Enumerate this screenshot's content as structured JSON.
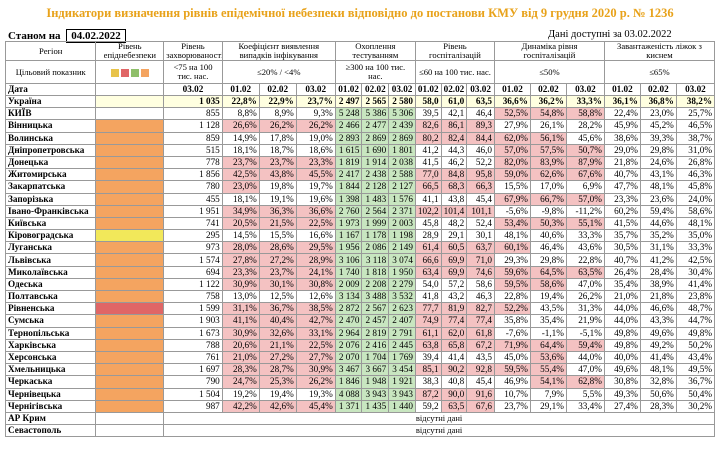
{
  "title": "Індикатори визначення рівнів епідемічної небезпеки відповідно до постанови КМУ від 9 грудня 2020 р. № 1236",
  "as_of_label": "Станом на",
  "as_of_date": "04.02.2022",
  "available_label": "Дані доступні за 03.02.2022",
  "colors": {
    "title": "#e8a21a",
    "orange": "#f4a460",
    "yellow": "#f2e85a",
    "red": "#e06666",
    "pink": "#f4c2c2",
    "green": "#c8e6c0"
  },
  "headers": {
    "region": "Регіон",
    "level": "Рівень епіднебезпеки",
    "incidence": "Рівень захворюваності",
    "detection": "Коефіцієнт виявлення випадків інфікування",
    "testing": "Охоплення тестуванням",
    "hosp_level": "Рівень госпіталізацій",
    "hosp_dyn": "Динаміка рівня госпіталізацій",
    "beds": "Завантаженість ліжок з киснем"
  },
  "target_row": {
    "label": "Цільовий показник",
    "incidence": "<75 на 100 тис. нас.",
    "detection": "≤20% / <4%",
    "testing": "≥300 на 100 тис. нас.",
    "hosp_level": "≤60 на 100 тис. нас.",
    "hosp_dyn": "≤50%",
    "beds": "≤65%"
  },
  "date_row": {
    "label": "Дата",
    "d": [
      "03.02",
      "01.02",
      "02.02",
      "03.02",
      "01.02",
      "02.02",
      "03.02",
      "01.02",
      "02.02",
      "03.02",
      "01.02",
      "02.02",
      "03.02",
      "01.02",
      "02.02",
      "03.02"
    ]
  },
  "ukraine": {
    "name": "Україна",
    "v": [
      "1 035",
      "22,8%",
      "22,9%",
      "23,7%",
      "2 497",
      "2 565",
      "2 580",
      "58,0",
      "61,0",
      "63,5",
      "36,6%",
      "36,2%",
      "33,3%",
      "36,1%",
      "36,8%",
      "38,2%"
    ]
  },
  "rows": [
    {
      "name": "КИЇВ",
      "lvl": "",
      "v": [
        "855",
        "8,8%",
        "8,9%",
        "9,3%",
        "5 248",
        "5 386",
        "5 306",
        "39,5",
        "42,1",
        "46,4",
        "52,5%",
        "54,8%",
        "58,8%",
        "22,4%",
        "23,0%",
        "25,7%"
      ]
    },
    {
      "name": "Вінницька",
      "lvl": "orange",
      "v": [
        "1 128",
        "26,6%",
        "26,2%",
        "26,2%",
        "2 466",
        "2 477",
        "2 439",
        "82,6",
        "86,1",
        "89,3",
        "27,9%",
        "26,1%",
        "28,2%",
        "45,9%",
        "45,2%",
        "46,5%"
      ]
    },
    {
      "name": "Волинська",
      "lvl": "orange",
      "v": [
        "859",
        "14,9%",
        "17,8%",
        "19,0%",
        "2 893",
        "2 869",
        "2 869",
        "80,2",
        "82,4",
        "84,4",
        "62,0%",
        "56,1%",
        "45,6%",
        "38,6%",
        "39,3%",
        "38,7%"
      ]
    },
    {
      "name": "Дніпропетровська",
      "lvl": "orange",
      "v": [
        "515",
        "18,1%",
        "18,7%",
        "18,6%",
        "1 615",
        "1 690",
        "1 801",
        "41,2",
        "44,3",
        "46,0",
        "57,0%",
        "57,5%",
        "50,7%",
        "29,0%",
        "29,8%",
        "31,0%"
      ]
    },
    {
      "name": "Донецька",
      "lvl": "orange",
      "v": [
        "778",
        "23,7%",
        "23,7%",
        "23,3%",
        "1 819",
        "1 914",
        "2 038",
        "41,5",
        "46,2",
        "52,2",
        "82,0%",
        "83,9%",
        "87,9%",
        "21,8%",
        "24,6%",
        "26,8%"
      ]
    },
    {
      "name": "Житомирська",
      "lvl": "orange",
      "v": [
        "1 856",
        "42,5%",
        "43,8%",
        "45,5%",
        "2 417",
        "2 438",
        "2 588",
        "77,0",
        "84,8",
        "95,8",
        "59,0%",
        "62,6%",
        "67,6%",
        "40,7%",
        "43,1%",
        "46,3%"
      ]
    },
    {
      "name": "Закарпатська",
      "lvl": "orange",
      "v": [
        "780",
        "23,0%",
        "19,8%",
        "19,7%",
        "1 844",
        "2 128",
        "2 127",
        "66,5",
        "68,3",
        "66,3",
        "15,5%",
        "17,0%",
        "6,9%",
        "47,7%",
        "48,1%",
        "45,8%"
      ]
    },
    {
      "name": "Запорізька",
      "lvl": "orange",
      "v": [
        "455",
        "18,1%",
        "19,1%",
        "19,6%",
        "1 398",
        "1 483",
        "1 576",
        "41,1",
        "43,8",
        "45,4",
        "67,9%",
        "66,7%",
        "57,0%",
        "23,3%",
        "23,6%",
        "24,0%"
      ]
    },
    {
      "name": "Івано-Франківська",
      "lvl": "orange",
      "v": [
        "1 951",
        "34,9%",
        "36,3%",
        "36,6%",
        "2 760",
        "2 564",
        "2 371",
        "102,2",
        "101,4",
        "101,1",
        "-5,6%",
        "-9,8%",
        "-11,2%",
        "60,2%",
        "59,4%",
        "58,6%"
      ]
    },
    {
      "name": "Київська",
      "lvl": "orange",
      "v": [
        "741",
        "20,5%",
        "21,5%",
        "22,5%",
        "1 973",
        "1 999",
        "2 003",
        "45,8",
        "48,2",
        "52,4",
        "53,4%",
        "50,3%",
        "55,1%",
        "41,5%",
        "44,6%",
        "48,1%"
      ]
    },
    {
      "name": "Кіровоградська",
      "lvl": "yellow",
      "v": [
        "295",
        "14,5%",
        "15,5%",
        "16,6%",
        "1 167",
        "1 178",
        "1 198",
        "28,9",
        "29,1",
        "30,1",
        "48,1%",
        "40,6%",
        "33,3%",
        "35,7%",
        "35,2%",
        "35,0%"
      ]
    },
    {
      "name": "Луганська",
      "lvl": "orange",
      "v": [
        "973",
        "28,0%",
        "28,6%",
        "29,5%",
        "1 956",
        "2 086",
        "2 149",
        "61,4",
        "60,5",
        "63,7",
        "60,1%",
        "46,4%",
        "43,6%",
        "30,5%",
        "31,1%",
        "33,3%"
      ]
    },
    {
      "name": "Львівська",
      "lvl": "orange",
      "v": [
        "1 574",
        "27,8%",
        "27,2%",
        "28,9%",
        "3 106",
        "3 118",
        "3 074",
        "66,6",
        "69,9",
        "71,0",
        "29,3%",
        "29,8%",
        "22,8%",
        "40,7%",
        "41,2%",
        "42,5%"
      ]
    },
    {
      "name": "Миколаївська",
      "lvl": "orange",
      "v": [
        "694",
        "23,3%",
        "23,7%",
        "24,1%",
        "1 740",
        "1 818",
        "1 950",
        "63,4",
        "69,9",
        "74,6",
        "59,6%",
        "64,5%",
        "63,5%",
        "26,4%",
        "28,4%",
        "30,4%"
      ]
    },
    {
      "name": "Одеська",
      "lvl": "orange",
      "v": [
        "1 122",
        "30,9%",
        "30,1%",
        "30,8%",
        "2 009",
        "2 208",
        "2 279",
        "54,0",
        "57,2",
        "58,6",
        "59,5%",
        "58,6%",
        "47,0%",
        "35,4%",
        "38,9%",
        "41,4%"
      ]
    },
    {
      "name": "Полтавська",
      "lvl": "orange",
      "v": [
        "758",
        "13,0%",
        "12,5%",
        "12,6%",
        "3 134",
        "3 488",
        "3 532",
        "41,8",
        "43,2",
        "46,3",
        "22,8%",
        "19,4%",
        "26,2%",
        "21,0%",
        "21,8%",
        "23,8%"
      ]
    },
    {
      "name": "Рівненська",
      "lvl": "red",
      "v": [
        "1 599",
        "31,1%",
        "36,7%",
        "38,5%",
        "2 872",
        "2 567",
        "2 623",
        "77,7",
        "81,9",
        "82,7",
        "52,2%",
        "43,5%",
        "31,3%",
        "44,0%",
        "46,6%",
        "48,7%"
      ]
    },
    {
      "name": "Сумська",
      "lvl": "orange",
      "v": [
        "1 903",
        "41,1%",
        "40,4%",
        "42,7%",
        "2 470",
        "2 457",
        "2 407",
        "74,9",
        "77,4",
        "77,4",
        "35,8%",
        "35,4%",
        "21,9%",
        "44,0%",
        "43,3%",
        "44,7%"
      ]
    },
    {
      "name": "Тернопільська",
      "lvl": "orange",
      "v": [
        "1 673",
        "30,9%",
        "32,6%",
        "33,1%",
        "2 964",
        "2 819",
        "2 791",
        "61,1",
        "62,0",
        "61,8",
        "-7,6%",
        "-1,1%",
        "-5,1%",
        "49,8%",
        "49,6%",
        "49,8%"
      ]
    },
    {
      "name": "Харківська",
      "lvl": "orange",
      "v": [
        "788",
        "20,6%",
        "21,1%",
        "22,5%",
        "2 076",
        "2 416",
        "2 445",
        "63,8",
        "65,8",
        "67,2",
        "71,9%",
        "64,4%",
        "59,4%",
        "49,8%",
        "49,2%",
        "50,2%"
      ]
    },
    {
      "name": "Херсонська",
      "lvl": "orange",
      "v": [
        "761",
        "21,0%",
        "27,2%",
        "27,7%",
        "2 070",
        "1 704",
        "1 769",
        "39,4",
        "41,4",
        "43,5",
        "45,0%",
        "53,6%",
        "44,0%",
        "40,0%",
        "41,4%",
        "43,4%"
      ]
    },
    {
      "name": "Хмельницька",
      "lvl": "orange",
      "v": [
        "1 697",
        "28,3%",
        "28,7%",
        "30,9%",
        "3 467",
        "3 667",
        "3 454",
        "85,1",
        "90,2",
        "92,8",
        "59,5%",
        "55,4%",
        "47,0%",
        "49,6%",
        "48,1%",
        "49,5%"
      ]
    },
    {
      "name": "Черкаська",
      "lvl": "orange",
      "v": [
        "790",
        "24,7%",
        "25,3%",
        "26,2%",
        "1 846",
        "1 948",
        "1 921",
        "38,3",
        "40,8",
        "45,4",
        "46,9%",
        "54,1%",
        "62,8%",
        "30,8%",
        "32,8%",
        "36,7%"
      ]
    },
    {
      "name": "Чернівецька",
      "lvl": "orange",
      "v": [
        "1 504",
        "19,2%",
        "19,4%",
        "19,3%",
        "4 088",
        "3 943",
        "3 943",
        "87,2",
        "90,0",
        "91,6",
        "10,7%",
        "7,9%",
        "5,5%",
        "49,3%",
        "50,6%",
        "50,4%"
      ]
    },
    {
      "name": "Чернігівська",
      "lvl": "orange",
      "v": [
        "987",
        "42,2%",
        "42,6%",
        "45,4%",
        "1 371",
        "1 435",
        "1 440",
        "59,2",
        "63,5",
        "67,6",
        "23,7%",
        "29,1%",
        "33,4%",
        "27,4%",
        "28,3%",
        "30,2%"
      ]
    }
  ],
  "no_data_rows": [
    {
      "name": "АР Крим",
      "text": "відсутні дані"
    },
    {
      "name": "Севастополь",
      "text": "відсутні дані"
    }
  ]
}
